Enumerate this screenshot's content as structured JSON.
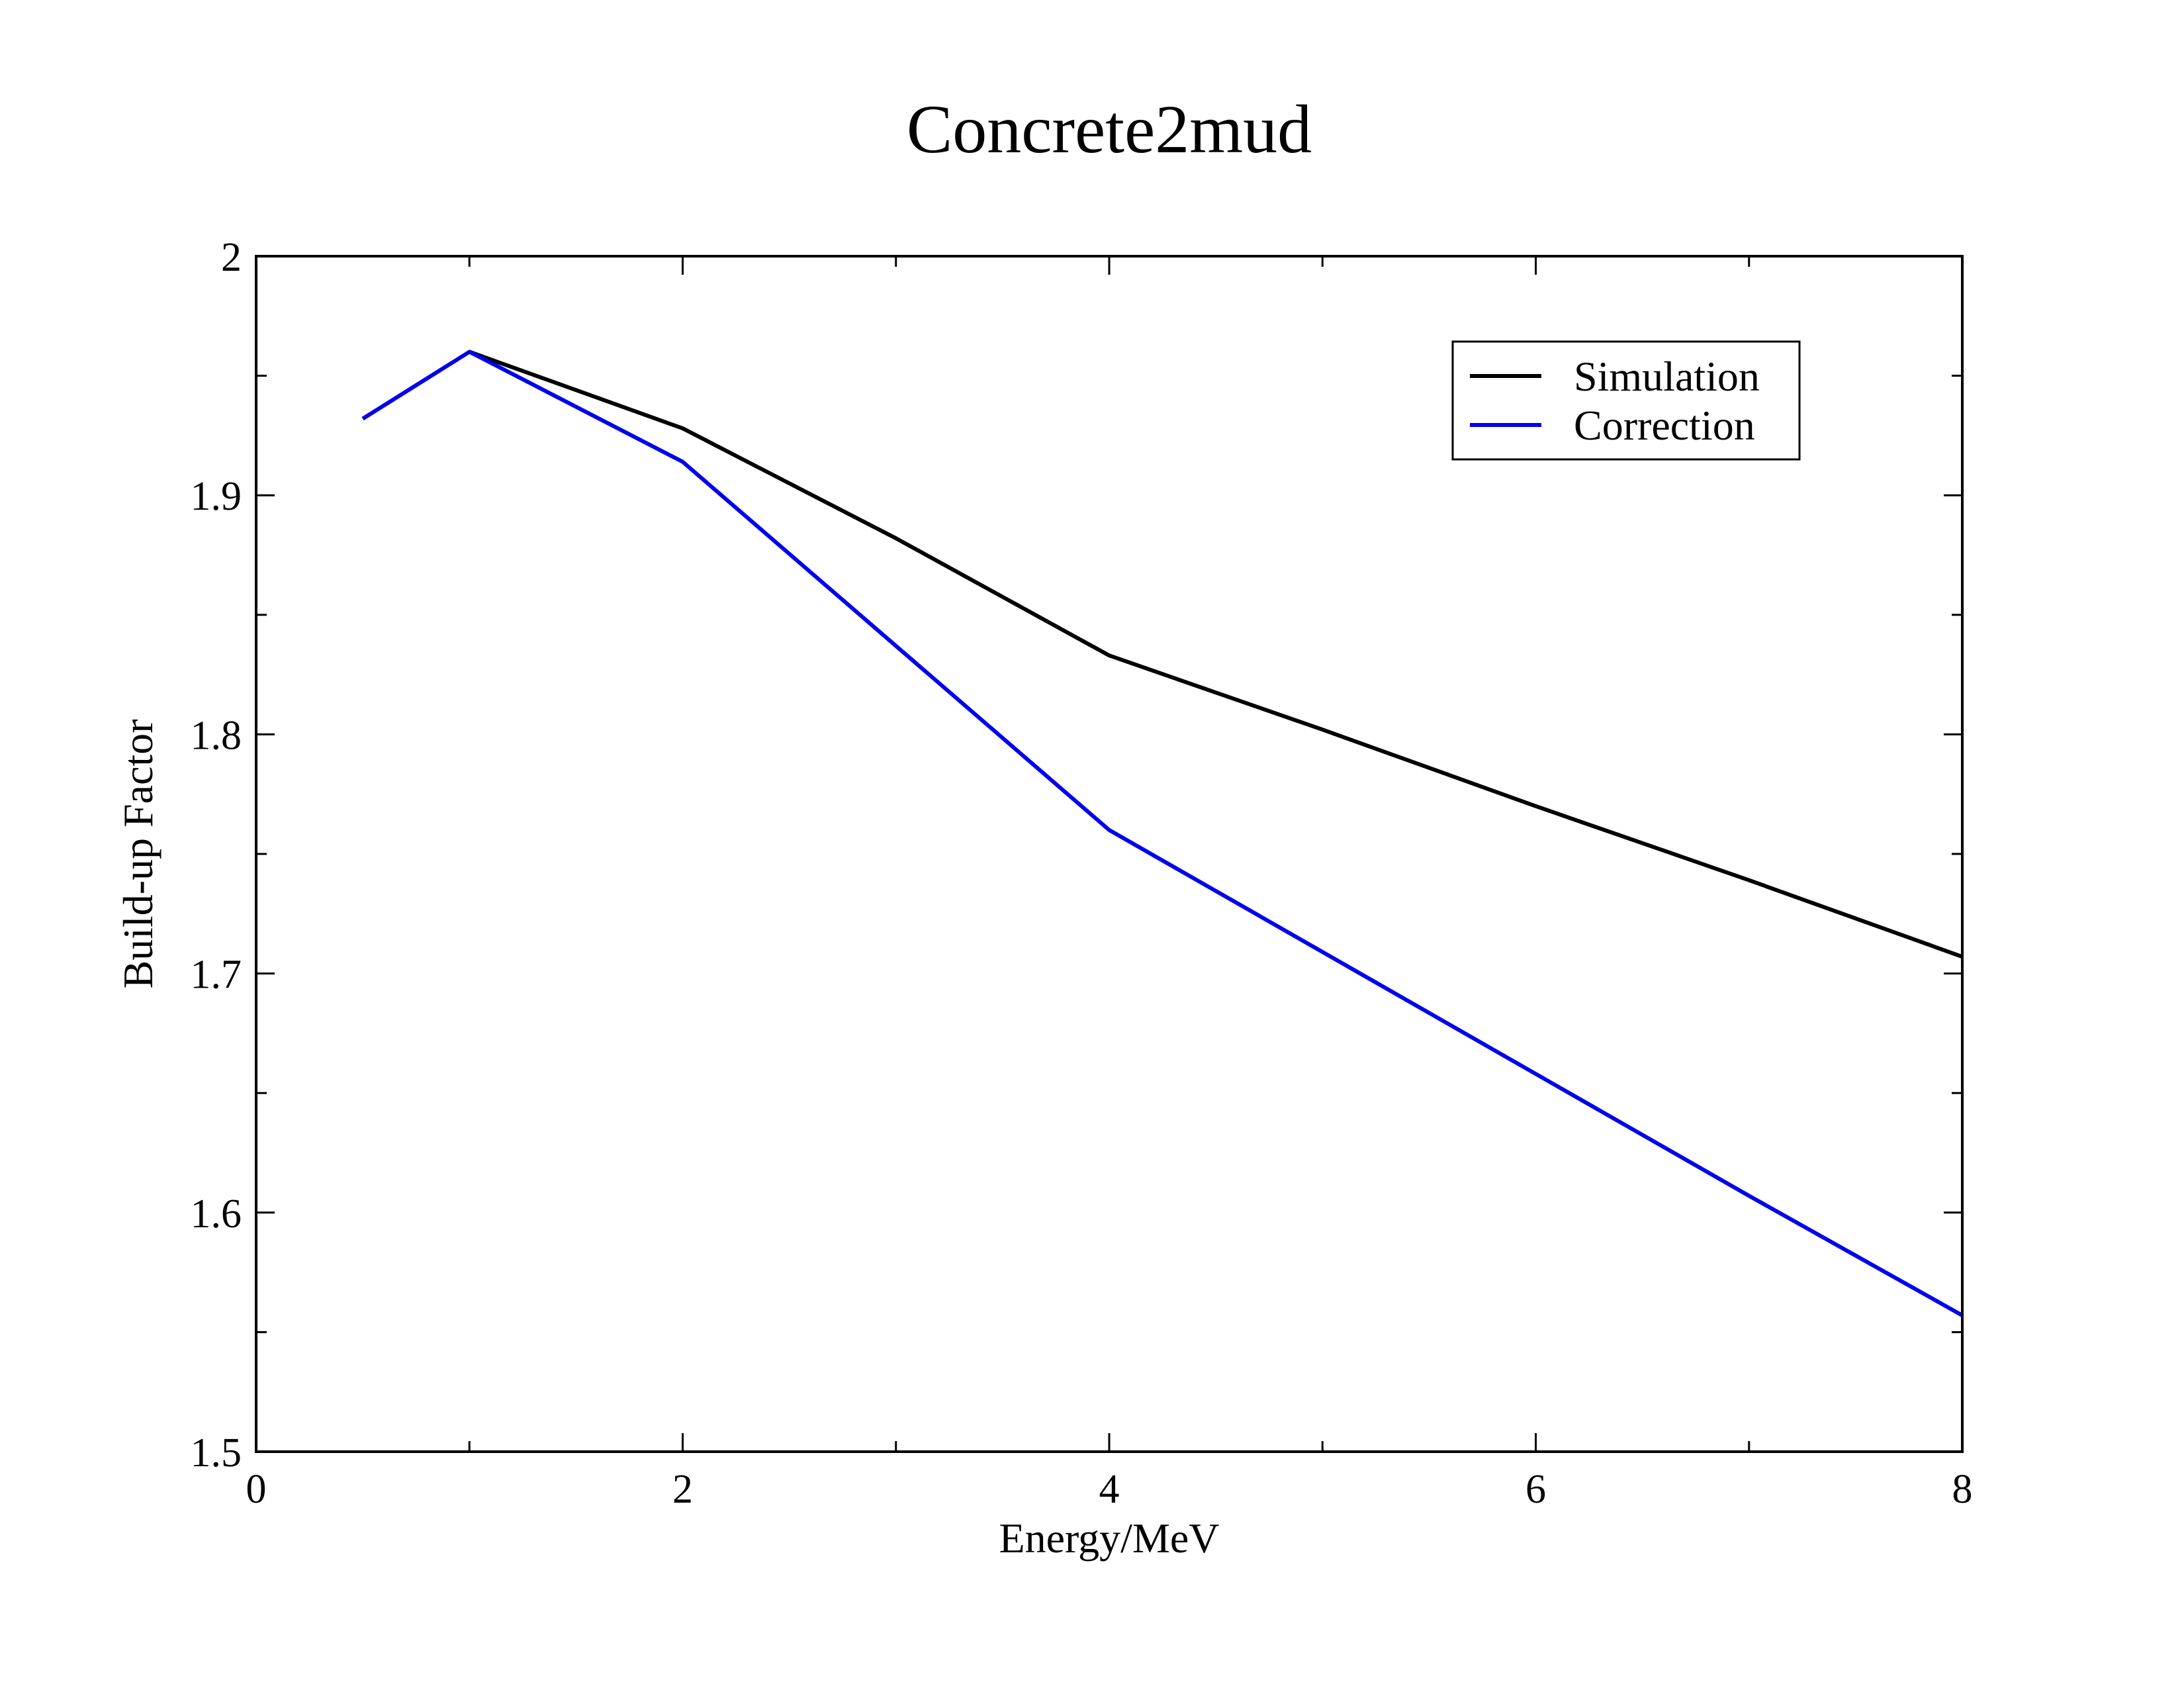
{
  "chart_data": {
    "type": "line",
    "title": "Concrete2mud",
    "xlabel": "Energy/MeV",
    "ylabel": "Build-up Factor",
    "xlim": [
      0,
      8
    ],
    "ylim": [
      1.5,
      2.0
    ],
    "x_major_ticks": [
      0,
      2,
      4,
      6,
      8
    ],
    "x_minor_ticks": [
      1,
      3,
      5,
      7
    ],
    "x_tick_labels": [
      "0",
      "2",
      "4",
      "6",
      "8"
    ],
    "y_major_ticks": [
      1.5,
      1.6,
      1.7,
      1.8,
      1.9,
      2.0
    ],
    "y_minor_ticks": [
      1.55,
      1.65,
      1.75,
      1.85,
      1.95
    ],
    "y_tick_labels": [
      "1.5",
      "1.6",
      "1.7",
      "1.8",
      "1.9",
      "2"
    ],
    "grid": false,
    "legend_position": "top-right",
    "series": [
      {
        "name": "Simulation",
        "color": "#000000",
        "x": [
          1,
          2,
          3,
          4,
          5,
          6,
          7,
          8
        ],
        "y": [
          1.96,
          1.928,
          1.882,
          1.833,
          1.802,
          1.77,
          1.739,
          1.707
        ]
      },
      {
        "name": "Correction",
        "color": "#0000ee",
        "x": [
          0.5,
          1,
          2,
          3,
          4,
          5,
          6,
          7,
          8
        ],
        "y": [
          1.932,
          1.96,
          1.914,
          1.837,
          1.76,
          1.709,
          1.658,
          1.607,
          1.557
        ]
      }
    ]
  }
}
